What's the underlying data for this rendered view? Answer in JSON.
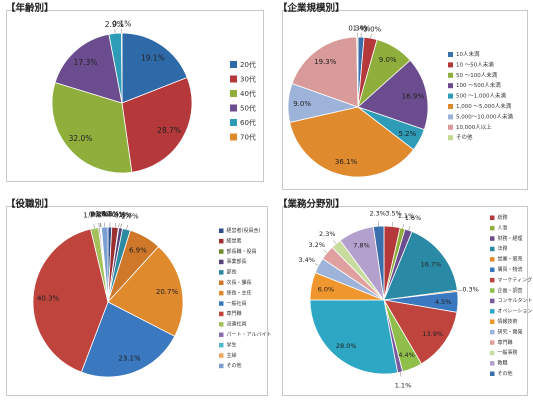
{
  "charts": [
    {
      "id": "age",
      "title": "【年齢別】",
      "type": "pie",
      "categories": [
        "20代",
        "30代",
        "40代",
        "50代",
        "60代",
        "70代"
      ],
      "values": [
        19.1,
        28.7,
        32.0,
        17.3,
        2.9,
        0.1
      ],
      "labels": [
        "19.1%",
        "28.7%",
        "32.0%",
        "17.3%",
        "2.9%",
        "0.1%"
      ],
      "colors": [
        "#2e6aa8",
        "#b5383a",
        "#8fae3c",
        "#6b4c8e",
        "#2e9cb7",
        "#e08a2e"
      ],
      "legend_position": "right"
    },
    {
      "id": "company",
      "title": "【企業規模別】",
      "type": "pie",
      "categories": [
        "10人未満",
        "10 ～50人未満",
        "50 ～100人未満",
        "100 ～500人未満",
        "500 ～1,000人未満",
        "1,000 ～5,000人未満",
        "5,000～10,000人未満",
        "10,000人以上",
        "その他"
      ],
      "values": [
        1.4,
        3.0,
        9.0,
        16.9,
        5.2,
        36.1,
        9.0,
        19.3,
        0.3
      ],
      "labels": [
        "1.4%",
        "3.0%",
        "9.0%",
        "16.9%",
        "5.2%",
        "36.1%",
        "9.0%",
        "19.3%",
        "0.3%"
      ],
      "colors": [
        "#3a6fae",
        "#b5383a",
        "#8fae3c",
        "#6b4c8e",
        "#2e9cb7",
        "#e08a2e",
        "#9db3d9",
        "#d99a9a",
        "#c4d88e"
      ],
      "legend_position": "right"
    },
    {
      "id": "position",
      "title": "【役職別】",
      "type": "pie",
      "categories": [
        "経営者(役員含)",
        "経営者",
        "部長職・役員",
        "事業部長",
        "部長",
        "次長・課長",
        "係長・主任",
        "一般社員",
        "専門職",
        "派遣社員",
        "パート・アルバイト",
        "学生",
        "主婦",
        "その他"
      ],
      "values": [
        0.8,
        1.4,
        0.1,
        0.8,
        1.7,
        6.9,
        20.7,
        23.1,
        40.3,
        1.7,
        0.3,
        0.2,
        0.1,
        1.4
      ],
      "labels": [
        "0.8%",
        "1.4%",
        "0.1%",
        "0.8%",
        "1.7%",
        "6.9%",
        "20.7%",
        "23.1%",
        "40.3%",
        "1.7%",
        "0.3%",
        "0.2%",
        "0.1%",
        "1.4%"
      ],
      "colors": [
        "#2e4f8a",
        "#9b2f32",
        "#6f8a2e",
        "#57417a",
        "#2b8aa0",
        "#d0782a",
        "#e08a2e",
        "#3a78c0",
        "#c0443e",
        "#a3c05a",
        "#8a6fb0",
        "#4fb8cf",
        "#f0a860",
        "#7a9fd0"
      ],
      "legend_position": "right"
    },
    {
      "id": "business",
      "title": "【業務分野別】",
      "type": "pie",
      "categories": [
        "総務",
        "人事",
        "財務・経理",
        "法務",
        "営業・販売",
        "購買・物流",
        "マーケティング",
        "企画・調査",
        "コンサルタント",
        "オペレーション",
        "情報技術",
        "研究・開発",
        "専門職",
        "一般事務",
        "教職",
        "その他"
      ],
      "values": [
        3.5,
        1.1,
        1.6,
        16.7,
        0.3,
        4.5,
        13.9,
        4.4,
        1.1,
        28.0,
        6.0,
        3.4,
        3.2,
        2.3,
        7.8,
        2.3
      ],
      "labels": [
        "3.5%",
        "1.1%",
        "1.6%",
        "16.7%",
        "0.3%",
        "4.5%",
        "13.9%",
        "4.4%",
        "1.1%",
        "28.0%",
        "6.0%",
        "3.4%",
        "3.2%",
        "2.3%",
        "7.8%",
        "2.3%"
      ],
      "colors": [
        "#b5383a",
        "#8fae3c",
        "#6b4c8e",
        "#2a8aa6",
        "#e08a2e",
        "#3a78c0",
        "#c0443e",
        "#8fbf4a",
        "#7a5a9e",
        "#2ea7c4",
        "#f0962e",
        "#9db3d9",
        "#e0a0a0",
        "#c8dca0",
        "#b4a0cc",
        "#3a6fae"
      ],
      "legend_position": "right"
    }
  ]
}
